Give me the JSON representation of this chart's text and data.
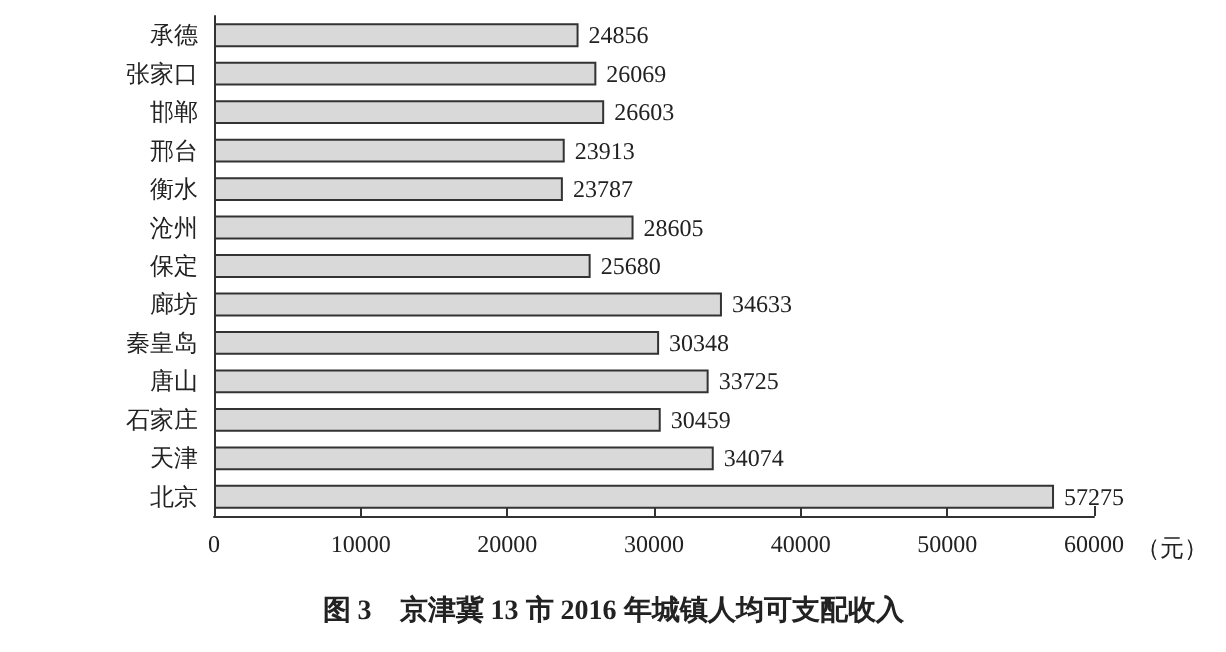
{
  "chart_data": {
    "type": "bar",
    "orientation": "horizontal",
    "title": "图 3　京津冀 13 市 2016 年城镇人均可支配收入",
    "xlabel": "（元）",
    "categories": [
      "承德",
      "张家口",
      "邯郸",
      "邢台",
      "衡水",
      "沧州",
      "保定",
      "廊坊",
      "秦皇岛",
      "唐山",
      "石家庄",
      "天津",
      "北京"
    ],
    "values": [
      24856,
      26069,
      26603,
      23913,
      23787,
      28605,
      25680,
      34633,
      30348,
      33725,
      30459,
      34074,
      57275
    ],
    "color": "#d9d9d9",
    "xlim": [
      0,
      60000
    ],
    "xticks": [
      0,
      10000,
      20000,
      30000,
      40000,
      50000,
      60000
    ],
    "grid": false,
    "data_labels": true
  }
}
